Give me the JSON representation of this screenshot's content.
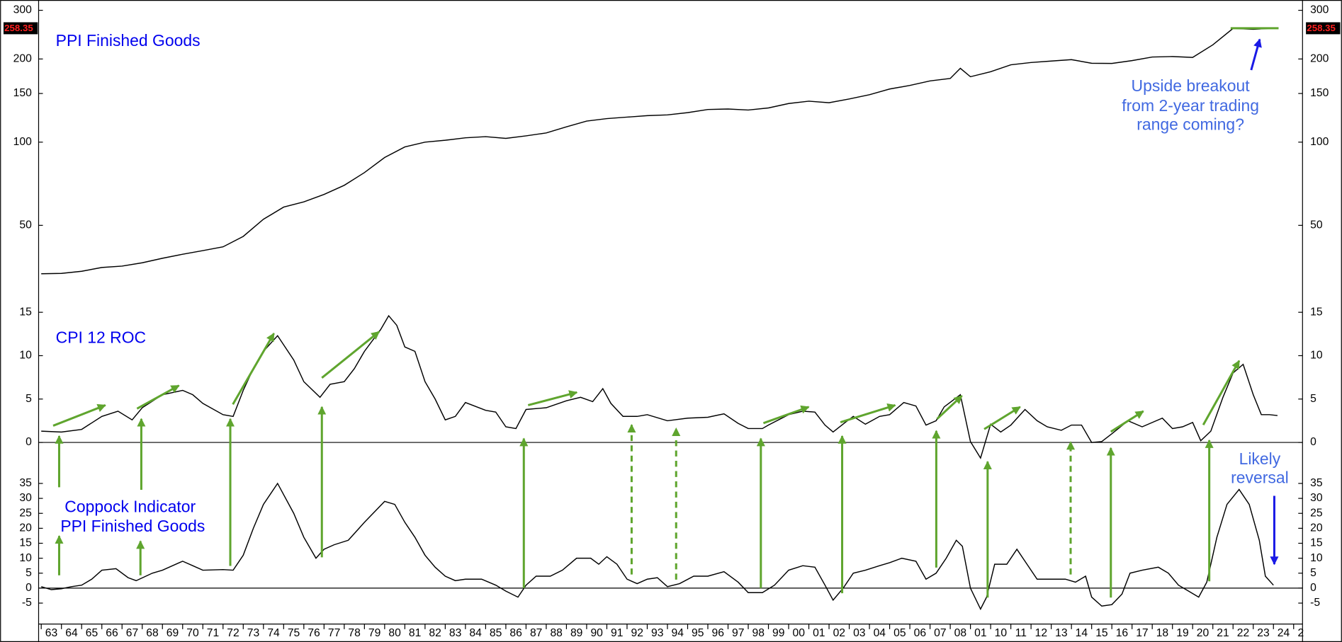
{
  "chart_data": [
    {
      "type": "line",
      "title": "PPI Finished Goods",
      "ylog": true,
      "ylim": [
        28,
        320
      ],
      "yticks": [
        50,
        100,
        150,
        200,
        300
      ],
      "current_value": 258.35,
      "annotation": [
        "Upside breakout",
        "from 2-year trading",
        "range coming?"
      ],
      "series": [
        {
          "color": "#000000",
          "x": [
            1963,
            1964,
            1965,
            1966,
            1967,
            1968,
            1969,
            1970,
            1971,
            1972,
            1973,
            1974,
            1975,
            1976,
            1977,
            1978,
            1979,
            1980,
            1981,
            1982,
            1983,
            1984,
            1985,
            1986,
            1987,
            1988,
            1989,
            1990,
            1991,
            1992,
            1993,
            1994,
            1995,
            1996,
            1997,
            1998,
            1999,
            2000,
            2001,
            2002,
            2003,
            2004,
            2005,
            2006,
            2007,
            2008,
            2008.5,
            2009,
            2010,
            2011,
            2012,
            2013,
            2014,
            2015,
            2016,
            2017,
            2018,
            2019,
            2020,
            2021,
            2022,
            2023,
            2024
          ],
          "values": [
            33.4,
            33.5,
            34.1,
            35.2,
            35.6,
            36.6,
            38.0,
            39.3,
            40.5,
            41.8,
            45.6,
            52.6,
            58.2,
            60.8,
            64.7,
            69.8,
            77.6,
            88.0,
            96.1,
            100.0,
            101.6,
            103.7,
            104.7,
            103.2,
            105.4,
            108.0,
            113.6,
            119.2,
            121.7,
            123.2,
            124.7,
            125.5,
            127.9,
            131.3,
            131.8,
            130.7,
            133.0,
            138.0,
            140.7,
            138.9,
            143.3,
            148.5,
            155.7,
            160.4,
            166.6,
            170,
            185,
            172.5,
            179.8,
            190.5,
            194.2,
            196.6,
            198.9,
            193.0,
            192.7,
            197.3,
            203.3,
            204.1,
            202.6,
            225,
            258,
            256,
            258.35
          ]
        }
      ]
    },
    {
      "type": "line",
      "title": "CPI 12  ROC",
      "ylim": [
        -3,
        17
      ],
      "yticks": [
        0,
        5,
        10,
        15
      ],
      "reference_line": 0,
      "series": [
        {
          "color": "#000000",
          "x": [
            1963,
            1964,
            1965,
            1966,
            1966.8,
            1967.5,
            1968,
            1969,
            1970,
            1970.5,
            1971,
            1972,
            1972.5,
            1973,
            1973.5,
            1974,
            1974.7,
            1975.5,
            1976,
            1976.8,
            1977.3,
            1978,
            1978.5,
            1979,
            1979.8,
            1980.2,
            1980.6,
            1981,
            1981.5,
            1982,
            1982.5,
            1983,
            1983.5,
            1984,
            1985,
            1985.5,
            1986,
            1986.5,
            1987,
            1988,
            1989,
            1989.7,
            1990.3,
            1990.8,
            1991.2,
            1991.8,
            1992.5,
            1993,
            1994,
            1995,
            1996,
            1996.8,
            1997.5,
            1998,
            1998.7,
            1999,
            2000,
            2000.7,
            2001.3,
            2001.8,
            2002.2,
            2002.8,
            2003.2,
            2003.8,
            2004.5,
            2005,
            2005.7,
            2006.3,
            2006.8,
            2007.3,
            2007.7,
            2008.5,
            2009,
            2009.5,
            2010,
            2010.5,
            2011,
            2011.7,
            2012.3,
            2012.8,
            2013.5,
            2014,
            2014.5,
            2015,
            2015.5,
            2016,
            2016.8,
            2017.5,
            2018.5,
            2019,
            2019.5,
            2020,
            2020.4,
            2020.9,
            2021.5,
            2022,
            2022.5,
            2023,
            2023.4,
            2023.8,
            2024.2
          ],
          "values": [
            1.3,
            1.2,
            1.5,
            3.0,
            3.6,
            2.6,
            4.0,
            5.5,
            6.0,
            5.5,
            4.5,
            3.2,
            3.0,
            6.0,
            8.5,
            10.5,
            12.3,
            9.5,
            7.0,
            5.2,
            6.7,
            7.0,
            8.5,
            10.5,
            13.0,
            14.6,
            13.5,
            11.0,
            10.5,
            7.0,
            5.0,
            2.6,
            3.0,
            4.6,
            3.7,
            3.5,
            1.8,
            1.6,
            3.8,
            4.0,
            4.8,
            5.2,
            4.7,
            6.2,
            4.5,
            3.0,
            3.0,
            3.2,
            2.5,
            2.8,
            2.9,
            3.3,
            2.2,
            1.6,
            1.6,
            2.0,
            3.2,
            3.6,
            3.5,
            2.0,
            1.2,
            2.3,
            3.0,
            2.1,
            3.0,
            3.2,
            4.6,
            4.2,
            2.0,
            2.5,
            4.1,
            5.5,
            0.1,
            -1.8,
            2.1,
            1.2,
            2.0,
            3.8,
            2.5,
            1.8,
            1.4,
            2.0,
            2.0,
            0,
            0.1,
            1.0,
            2.5,
            1.8,
            2.8,
            1.6,
            1.8,
            2.3,
            0.2,
            1.3,
            5.2,
            8.0,
            9.0,
            5.5,
            3.2,
            3.2,
            3.1
          ]
        }
      ]
    },
    {
      "type": "line",
      "title": [
        "Coppock Indicator",
        "PPI Finished Goods"
      ],
      "ylim": [
        -12,
        40
      ],
      "yticks": [
        -5,
        0,
        5,
        10,
        15,
        20,
        25,
        30,
        35
      ],
      "reference_line": 0,
      "annotation": [
        "Likely",
        "reversal"
      ],
      "xlim": [
        1962.87,
        2025.44
      ],
      "xticks": [
        {
          "value": 1963,
          "label": "63"
        },
        {
          "value": 1964,
          "label": "64"
        },
        {
          "value": 1965,
          "label": "65"
        },
        {
          "value": 1966,
          "label": "66"
        },
        {
          "value": 1967,
          "label": "67"
        },
        {
          "value": 1968,
          "label": "68"
        },
        {
          "value": 1969,
          "label": "69"
        },
        {
          "value": 1970,
          "label": "70"
        },
        {
          "value": 1971,
          "label": "71"
        },
        {
          "value": 1972,
          "label": "72"
        },
        {
          "value": 1973,
          "label": "73"
        },
        {
          "value": 1974,
          "label": "74"
        },
        {
          "value": 1975,
          "label": "75"
        },
        {
          "value": 1976,
          "label": "76"
        },
        {
          "value": 1977,
          "label": "77"
        },
        {
          "value": 1978,
          "label": "78"
        },
        {
          "value": 1979,
          "label": "79"
        },
        {
          "value": 1980,
          "label": "80"
        },
        {
          "value": 1981,
          "label": "81"
        },
        {
          "value": 1982,
          "label": "82"
        },
        {
          "value": 1983,
          "label": "83"
        },
        {
          "value": 1984,
          "label": "84"
        },
        {
          "value": 1985,
          "label": "85"
        },
        {
          "value": 1986,
          "label": "86"
        },
        {
          "value": 1987,
          "label": "87"
        },
        {
          "value": 1988,
          "label": "88"
        },
        {
          "value": 1989,
          "label": "89"
        },
        {
          "value": 1990,
          "label": "90"
        },
        {
          "value": 1991,
          "label": "91"
        },
        {
          "value": 1992,
          "label": "92"
        },
        {
          "value": 1993,
          "label": "93"
        },
        {
          "value": 1994,
          "label": "94"
        },
        {
          "value": 1995,
          "label": "95"
        },
        {
          "value": 1996,
          "label": "96"
        },
        {
          "value": 1997,
          "label": "97"
        },
        {
          "value": 1998,
          "label": "98"
        },
        {
          "value": 1999,
          "label": "99"
        },
        {
          "value": 2000,
          "label": "00"
        },
        {
          "value": 2001,
          "label": "01"
        },
        {
          "value": 2002,
          "label": "02"
        },
        {
          "value": 2003,
          "label": "03"
        },
        {
          "value": 2004,
          "label": "04"
        },
        {
          "value": 2005,
          "label": "05"
        },
        {
          "value": 2006,
          "label": "06"
        },
        {
          "value": 2007,
          "label": "07"
        },
        {
          "value": 2008,
          "label": "08"
        },
        {
          "value": 2009,
          "label": "01"
        },
        {
          "value": 2010,
          "label": "10"
        },
        {
          "value": 2011,
          "label": "11"
        },
        {
          "value": 2012,
          "label": "12"
        },
        {
          "value": 2013,
          "label": "13"
        },
        {
          "value": 2014,
          "label": "14"
        },
        {
          "value": 2015,
          "label": "15"
        },
        {
          "value": 2016,
          "label": "16"
        },
        {
          "value": 2017,
          "label": "17"
        },
        {
          "value": 2018,
          "label": "18"
        },
        {
          "value": 2019,
          "label": "19"
        },
        {
          "value": 2020,
          "label": "20"
        },
        {
          "value": 2021,
          "label": "21"
        },
        {
          "value": 2022,
          "label": "22"
        },
        {
          "value": 2023,
          "label": "23"
        },
        {
          "value": 2024,
          "label": "24"
        },
        {
          "value": 2025,
          "label": "2"
        }
      ],
      "series": [
        {
          "color": "#000000",
          "x": [
            1963,
            1963.5,
            1964,
            1964.5,
            1965,
            1965.5,
            1966,
            1966.7,
            1967.3,
            1967.7,
            1968.5,
            1969,
            1970,
            1970.5,
            1971,
            1972,
            1972.5,
            1973,
            1973.5,
            1974,
            1974.7,
            1975.5,
            1976,
            1976.6,
            1977,
            1977.5,
            1978.2,
            1979,
            1980,
            1980.5,
            1981,
            1981.5,
            1982,
            1982.5,
            1983,
            1983.5,
            1984,
            1984.8,
            1985.5,
            1986,
            1986.6,
            1987,
            1987.5,
            1988.2,
            1988.8,
            1989.5,
            1990.2,
            1990.6,
            1991,
            1991.5,
            1992,
            1992.5,
            1993,
            1993.5,
            1994,
            1994.6,
            1995.3,
            1996,
            1996.8,
            1997.5,
            1998,
            1998.7,
            1999.3,
            2000,
            2000.7,
            2001.3,
            2001.8,
            2002.2,
            2002.7,
            2003.2,
            2003.8,
            2004.5,
            2005,
            2005.6,
            2006.3,
            2006.8,
            2007.3,
            2007.8,
            2008.3,
            2008.6,
            2009,
            2009.5,
            2009.8,
            2010.2,
            2010.8,
            2011.3,
            2011.8,
            2012.3,
            2013,
            2013.7,
            2014.2,
            2014.7,
            2015,
            2015.5,
            2016,
            2016.5,
            2016.9,
            2017.5,
            2018.3,
            2018.8,
            2019.3,
            2019.8,
            2020.3,
            2020.7,
            2021.2,
            2021.7,
            2022.3,
            2022.8,
            2023.3,
            2023.6,
            2024
          ],
          "values": [
            0.5,
            -0.5,
            -0.2,
            0.5,
            1,
            3,
            6,
            6.5,
            3.5,
            2.5,
            5,
            6,
            9,
            7.5,
            6,
            6.2,
            6,
            11,
            20,
            28,
            35,
            25,
            17,
            10,
            13,
            14.5,
            16,
            22,
            29,
            28,
            22,
            17,
            11,
            7,
            4,
            2.5,
            3,
            3,
            1,
            -1,
            -3,
            1,
            4,
            4,
            6,
            10,
            10,
            8,
            10.5,
            8,
            3,
            1.5,
            3,
            3.5,
            0.5,
            1.5,
            4,
            4,
            5.5,
            2,
            -1.5,
            -1.5,
            1,
            6,
            7.5,
            7,
            1,
            -4,
            0,
            5,
            6,
            7.5,
            8.5,
            10,
            9,
            3,
            5,
            10,
            16,
            14,
            0,
            -7,
            -3,
            8,
            8,
            13,
            8,
            3,
            3,
            3,
            2,
            4,
            -3,
            -6,
            -5.5,
            -2,
            5,
            6,
            7,
            5,
            1,
            -1,
            -3,
            2,
            17,
            28,
            33,
            28,
            16,
            4,
            1
          ]
        }
      ]
    }
  ]
}
